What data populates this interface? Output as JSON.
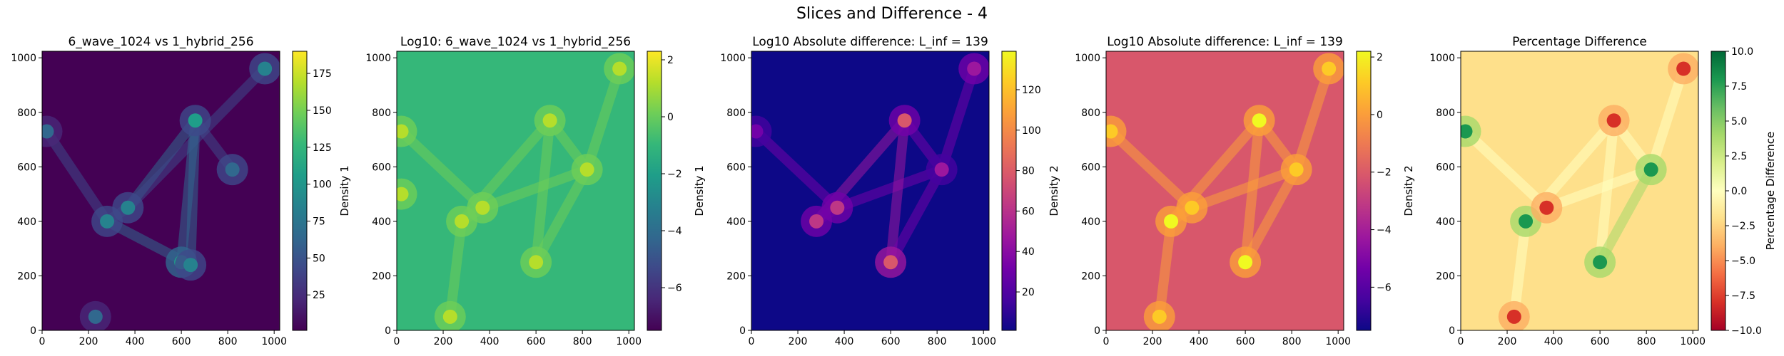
{
  "figure": {
    "suptitle": "Slices and Difference - 4"
  },
  "chart_data": [
    {
      "type": "heatmap",
      "title": "6_wave_1024 vs 1_hybrid_256",
      "colormap": "viridis",
      "xlim": [
        0,
        1024
      ],
      "ylim": [
        0,
        1024
      ],
      "x_ticks": [
        0,
        200,
        400,
        600,
        800,
        1000
      ],
      "y_ticks": [
        0,
        200,
        400,
        600,
        800,
        1000
      ],
      "colorbar": {
        "label": "Density 1",
        "range": [
          1,
          190
        ],
        "ticks": [
          "25",
          "50",
          "75",
          "100",
          "125",
          "150",
          "175"
        ]
      },
      "background_value": 0.02,
      "features": [
        {
          "x": 280,
          "y": 400,
          "level": 0.45
        },
        {
          "x": 370,
          "y": 450,
          "level": 0.4
        },
        {
          "x": 600,
          "y": 250,
          "level": 0.55
        },
        {
          "x": 640,
          "y": 240,
          "level": 0.45
        },
        {
          "x": 660,
          "y": 770,
          "level": 0.5
        },
        {
          "x": 820,
          "y": 590,
          "level": 0.35
        },
        {
          "x": 960,
          "y": 960,
          "level": 0.4
        },
        {
          "x": 20,
          "y": 730,
          "level": 0.3
        },
        {
          "x": 230,
          "y": 50,
          "level": 0.3
        }
      ]
    },
    {
      "type": "heatmap",
      "title": "Log10: 6_wave_1024 vs 1_hybrid_256",
      "colormap": "viridis",
      "xlim": [
        0,
        1024
      ],
      "ylim": [
        0,
        1024
      ],
      "x_ticks": [
        0,
        200,
        400,
        600,
        800,
        1000
      ],
      "y_ticks": [
        0,
        200,
        400,
        600,
        800,
        1000
      ],
      "colorbar": {
        "label": "Density 1",
        "range": [
          -7.5,
          2.3
        ],
        "ticks": [
          "−6",
          "−4",
          "−2",
          "0",
          "2"
        ]
      },
      "background_value": 0.62,
      "features": [
        {
          "x": 280,
          "y": 400,
          "level": 0.92
        },
        {
          "x": 370,
          "y": 450,
          "level": 0.9
        },
        {
          "x": 600,
          "y": 250,
          "level": 0.92
        },
        {
          "x": 660,
          "y": 770,
          "level": 0.92
        },
        {
          "x": 820,
          "y": 590,
          "level": 0.88
        },
        {
          "x": 960,
          "y": 960,
          "level": 0.9
        },
        {
          "x": 20,
          "y": 730,
          "level": 0.88
        },
        {
          "x": 230,
          "y": 50,
          "level": 0.88
        },
        {
          "x": 20,
          "y": 500,
          "level": 0.86
        }
      ]
    },
    {
      "type": "heatmap",
      "title": "Log10 Absolute difference: L_inf = 139",
      "colormap": "plasma",
      "xlim": [
        0,
        1024
      ],
      "ylim": [
        0,
        1024
      ],
      "x_ticks": [
        0,
        200,
        400,
        600,
        800,
        1000
      ],
      "y_ticks": [
        0,
        200,
        400,
        600,
        800,
        1000
      ],
      "colorbar": {
        "label": "Density 2",
        "range": [
          1,
          139
        ],
        "ticks": [
          "20",
          "40",
          "60",
          "80",
          "100",
          "120"
        ]
      },
      "background_value": 0.01,
      "features": [
        {
          "x": 280,
          "y": 400,
          "level": 0.45
        },
        {
          "x": 370,
          "y": 450,
          "level": 0.4
        },
        {
          "x": 600,
          "y": 250,
          "level": 0.55
        },
        {
          "x": 660,
          "y": 770,
          "level": 0.5
        },
        {
          "x": 820,
          "y": 590,
          "level": 0.3
        },
        {
          "x": 960,
          "y": 960,
          "level": 0.35
        },
        {
          "x": 20,
          "y": 730,
          "level": 0.25
        }
      ]
    },
    {
      "type": "heatmap",
      "title": "Log10 Absolute difference: L_inf = 139",
      "colormap": "plasma",
      "xlim": [
        0,
        1024
      ],
      "ylim": [
        0,
        1024
      ],
      "x_ticks": [
        0,
        200,
        400,
        600,
        800,
        1000
      ],
      "y_ticks": [
        0,
        200,
        400,
        600,
        800,
        1000
      ],
      "colorbar": {
        "label": "Density 2",
        "range": [
          -7.5,
          2.2
        ],
        "ticks": [
          "−6",
          "−4",
          "−2",
          "0",
          "2"
        ]
      },
      "background_value": 0.55,
      "features": [
        {
          "x": 280,
          "y": 400,
          "level": 0.95
        },
        {
          "x": 370,
          "y": 450,
          "level": 0.93
        },
        {
          "x": 600,
          "y": 250,
          "level": 0.95
        },
        {
          "x": 660,
          "y": 770,
          "level": 0.95
        },
        {
          "x": 820,
          "y": 590,
          "level": 0.9
        },
        {
          "x": 960,
          "y": 960,
          "level": 0.92
        },
        {
          "x": 20,
          "y": 730,
          "level": 0.9
        },
        {
          "x": 230,
          "y": 50,
          "level": 0.9
        }
      ]
    },
    {
      "type": "heatmap",
      "title": "Percentage Difference",
      "colormap": "RdYlGn",
      "xlim": [
        0,
        1024
      ],
      "ylim": [
        0,
        1024
      ],
      "x_ticks": [
        0,
        200,
        400,
        600,
        800,
        1000
      ],
      "y_ticks": [
        0,
        200,
        400,
        600,
        800,
        1000
      ],
      "colorbar": {
        "label": "Percentage Difference",
        "range": [
          -10,
          10
        ],
        "ticks": [
          "−10.0",
          "−7.5",
          "−5.0",
          "−2.5",
          "0.0",
          "2.5",
          "5.0",
          "7.5",
          "10.0"
        ]
      },
      "background_value": 0.44,
      "features": [
        {
          "x": 280,
          "y": 400,
          "level": 0.9
        },
        {
          "x": 370,
          "y": 450,
          "level": 0.1
        },
        {
          "x": 600,
          "y": 250,
          "level": 0.9
        },
        {
          "x": 660,
          "y": 770,
          "level": 0.1
        },
        {
          "x": 820,
          "y": 590,
          "level": 0.9
        },
        {
          "x": 960,
          "y": 960,
          "level": 0.1
        },
        {
          "x": 20,
          "y": 730,
          "level": 0.9
        },
        {
          "x": 230,
          "y": 50,
          "level": 0.1
        }
      ]
    }
  ]
}
